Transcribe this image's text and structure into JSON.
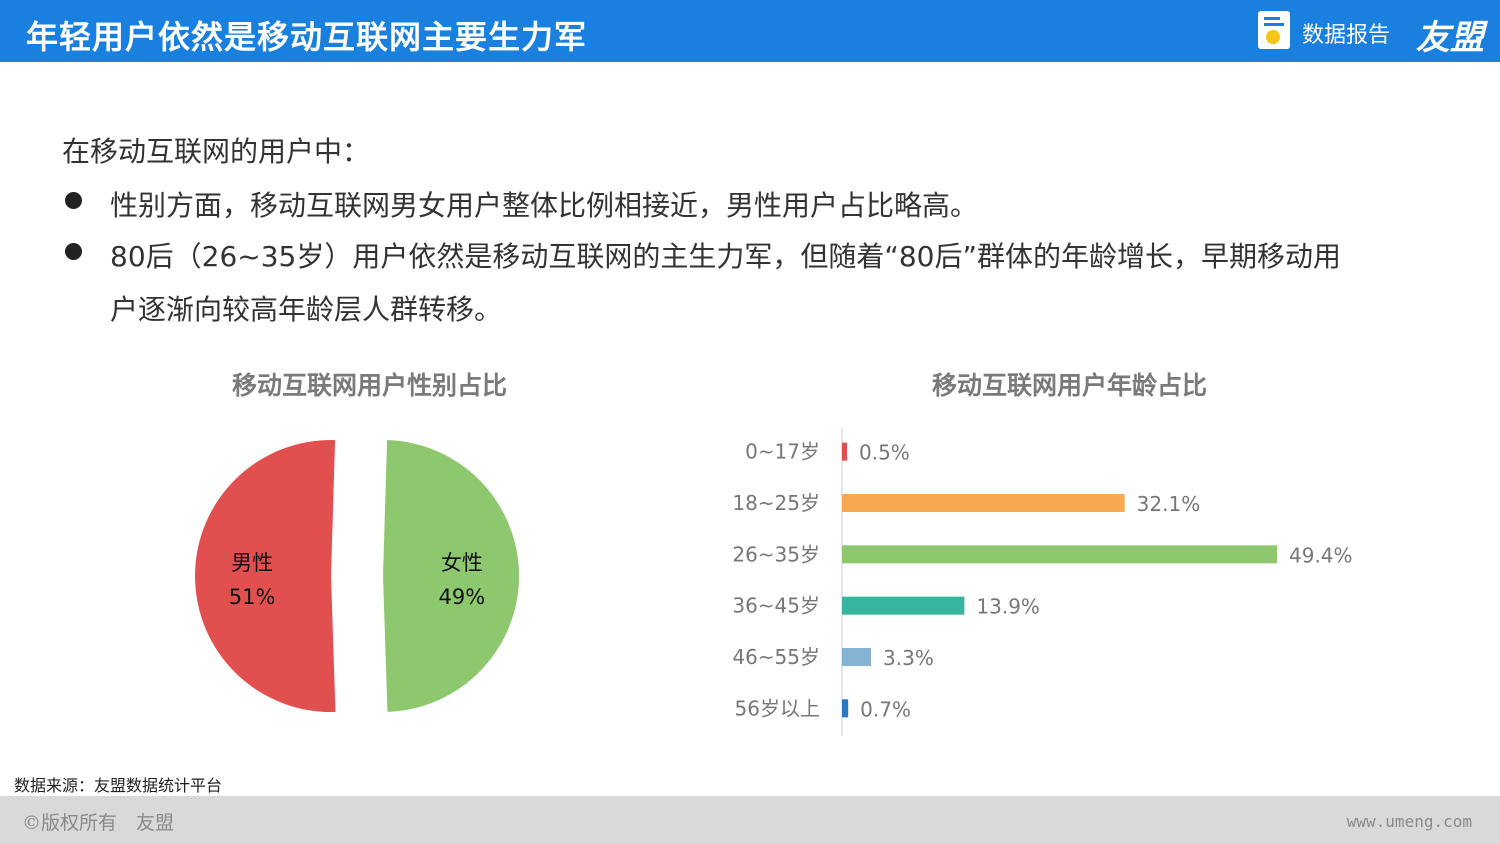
{
  "header": {
    "title": "年轻用户依然是移动互联网主要生力军",
    "report_label": "数据报告",
    "brand": "友盟",
    "color": "#1a80e0"
  },
  "intro": "在移动互联网的用户中：",
  "bullets": [
    {
      "lines": [
        "性别方面，移动互联网男女用户整体比例相接近，男性用户占比略高。"
      ]
    },
    {
      "lines": [
        "80后（26~35岁）用户依然是移动互联网的主生力军，但随着“80后”群体的年龄增长，早期移动用",
        "户逐渐向较高年龄层人群转移。"
      ]
    }
  ],
  "chart_data": [
    {
      "type": "pie",
      "title": "移动互联网用户性别占比",
      "slices": [
        {
          "label": "女性",
          "value": 49,
          "value_label": "49%",
          "color": "#8dc86e"
        },
        {
          "label": "男性",
          "value": 51,
          "value_label": "51%",
          "color": "#e24f4f"
        }
      ],
      "exploded": true
    },
    {
      "type": "bar",
      "orientation": "horizontal",
      "title": "移动互联网用户年龄占比",
      "categories": [
        "0~17岁",
        "18~25岁",
        "26~35岁",
        "36~45岁",
        "46~55岁",
        "56岁以上"
      ],
      "values": [
        0.5,
        32.1,
        49.4,
        13.9,
        3.3,
        0.7
      ],
      "value_labels": [
        "0.5%",
        "32.1%",
        "49.4%",
        "13.9%",
        "3.3%",
        "0.7%"
      ],
      "colors": [
        "#e24f4f",
        "#f8a850",
        "#8dc86e",
        "#38b5a0",
        "#84b3d4",
        "#2a78c2"
      ],
      "unit": "%"
    }
  ],
  "footer": {
    "source": "数据来源：友盟数据统计平台",
    "copyright": "©版权所有　友盟",
    "website": "www.umeng.com"
  }
}
